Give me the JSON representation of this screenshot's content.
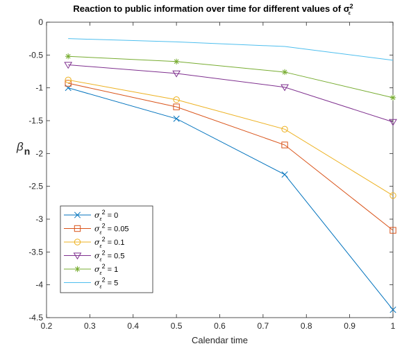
{
  "chart_data": {
    "type": "line",
    "title": "Reaction to public information over time for different values of σ",
    "title_symbol_sup": "2",
    "title_symbol_sub": "ε",
    "xlabel": "Calendar time",
    "ylabel": "β",
    "ylabel_sub": "n",
    "xlim": [
      0.2,
      1
    ],
    "ylim": [
      -4.5,
      0
    ],
    "xticks": [
      0.2,
      0.3,
      0.4,
      0.5,
      0.6,
      0.7,
      0.8,
      0.9,
      1
    ],
    "xtick_labels": [
      "0.2",
      "0.3",
      "0.4",
      "0.5",
      "0.6",
      "0.7",
      "0.8",
      "0.9",
      "1"
    ],
    "yticks": [
      0,
      -0.5,
      -1,
      -1.5,
      -2,
      -2.5,
      -3,
      -3.5,
      -4,
      -4.5
    ],
    "ytick_labels": [
      "0",
      "-0.5",
      "-1",
      "-1.5",
      "-2",
      "-2.5",
      "-3",
      "-3.5",
      "-4",
      "-4.5"
    ],
    "grid": false,
    "legend_position": "bottom-left",
    "x": [
      0.25,
      0.5,
      0.75,
      1
    ],
    "series": [
      {
        "name_prefix": "σ",
        "name_sub": "ε",
        "name_sup": "2",
        "name_value": " = 0",
        "color": "#0072BD",
        "marker": "x",
        "values": [
          -1.0,
          -1.47,
          -2.32,
          -4.38
        ]
      },
      {
        "name_prefix": "σ",
        "name_sub": "ε",
        "name_sup": "2",
        "name_value": " = 0.05",
        "color": "#D95319",
        "marker": "square",
        "values": [
          -0.93,
          -1.29,
          -1.87,
          -3.17
        ]
      },
      {
        "name_prefix": "σ",
        "name_sub": "ε",
        "name_sup": "2",
        "name_value": " = 0.1",
        "color": "#EDB120",
        "marker": "circle",
        "values": [
          -0.88,
          -1.18,
          -1.63,
          -2.64
        ]
      },
      {
        "name_prefix": "σ",
        "name_sub": "ε",
        "name_sup": "2",
        "name_value": " = 0.5",
        "color": "#7E2F8E",
        "marker": "triangle-down",
        "values": [
          -0.65,
          -0.78,
          -0.99,
          -1.52
        ]
      },
      {
        "name_prefix": "σ",
        "name_sub": "ε",
        "name_sup": "2",
        "name_value": " = 1",
        "color": "#77AC30",
        "marker": "star",
        "values": [
          -0.52,
          -0.6,
          -0.76,
          -1.15
        ]
      },
      {
        "name_prefix": "σ",
        "name_sub": "ε",
        "name_sup": "2",
        "name_value": " = 5",
        "color": "#4DBEEE",
        "marker": "none",
        "values": [
          -0.25,
          -0.3,
          -0.37,
          -0.58
        ]
      }
    ]
  }
}
